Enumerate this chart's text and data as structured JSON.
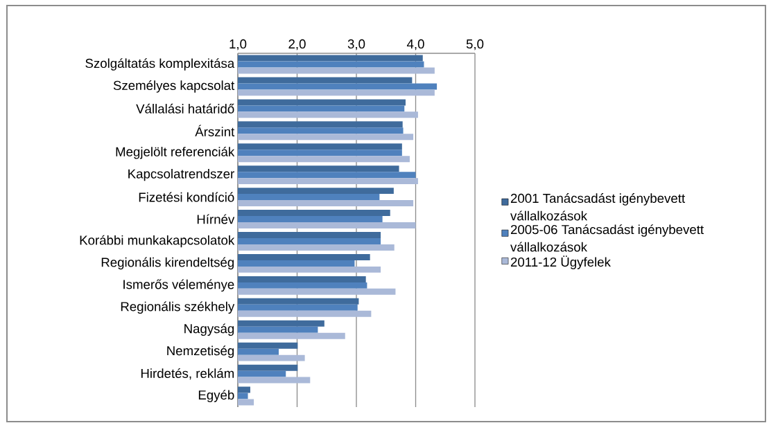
{
  "chart_data": {
    "type": "bar",
    "orientation": "horizontal",
    "categories": [
      "Szolgáltatás komplexitása",
      "Személyes kapcsolat",
      "Vállalási határidő",
      "Árszint",
      "Megjelölt referenciák",
      "Kapcsolatrendszer",
      "Fizetési kondíció",
      "Hírnév",
      "Korábbi munkakapcsolatok",
      "Regionális kirendeltség",
      "Ismerős véleménye",
      "Regionális székhely",
      "Nagyság",
      "Nemzetiség",
      "Hirdetés, reklám",
      "Egyéb"
    ],
    "series": [
      {
        "name": "2001 Tanácsadást igénybevett vállalkozások",
        "color": "#3f6b9c",
        "values": [
          4.12,
          3.94,
          3.83,
          3.78,
          3.77,
          3.72,
          3.63,
          3.57,
          3.41,
          3.23,
          3.16,
          3.04,
          2.46,
          2.01,
          2.01,
          1.21
        ]
      },
      {
        "name": "2005-06 Tanácsadást igénybevett vállalkozások",
        "color": "#4f81bd",
        "values": [
          4.14,
          4.36,
          3.81,
          3.79,
          3.77,
          4.0,
          3.39,
          3.44,
          3.41,
          2.97,
          3.18,
          3.02,
          2.35,
          1.69,
          1.81,
          1.17
        ]
      },
      {
        "name": "2011-12 Ügyfelek",
        "color": "#aab9d8",
        "values": [
          4.32,
          4.32,
          4.04,
          3.96,
          3.9,
          4.04,
          3.96,
          4.0,
          3.64,
          3.41,
          3.66,
          3.25,
          2.81,
          2.13,
          2.22,
          1.27
        ]
      }
    ],
    "xlim": [
      1,
      5
    ],
    "xticks": [
      {
        "value": 1,
        "label": "1,0"
      },
      {
        "value": 2,
        "label": "2,0"
      },
      {
        "value": 3,
        "label": "3,0"
      },
      {
        "value": 4,
        "label": "4,0"
      },
      {
        "value": 5,
        "label": "5,0"
      }
    ],
    "grid": "x",
    "legend": "right"
  }
}
